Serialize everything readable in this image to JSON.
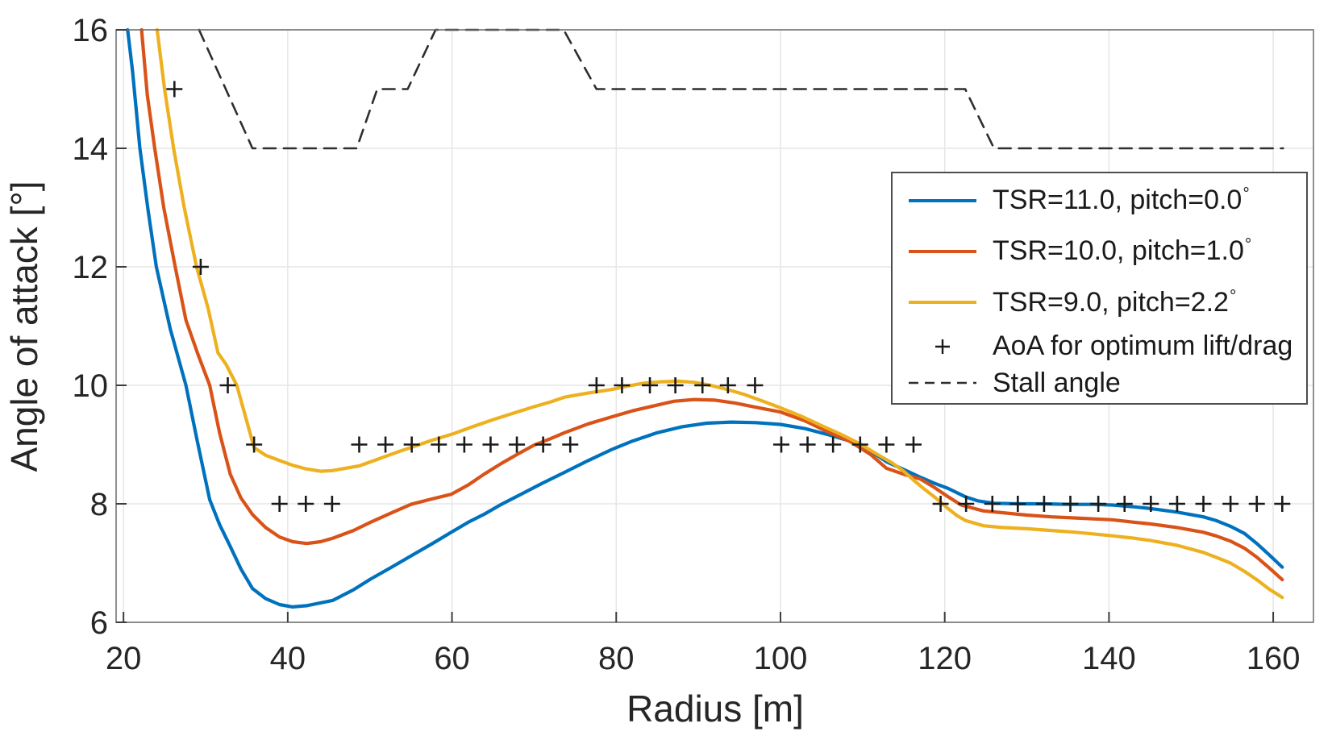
{
  "figure": {
    "xlabel": "Radius [m]",
    "ylabel": "Angle of attack [°]",
    "background": "#ffffff",
    "grid_color": "#e6e6e6",
    "box_color": "#6b6b6b",
    "tick_color": "#3c3c3c",
    "text_color": "#262626"
  },
  "legend": {
    "items": [
      {
        "label": "TSR=11.0, pitch=0.0",
        "degree": "°",
        "swatch": "line",
        "color": "#0072BD"
      },
      {
        "label": "TSR=10.0, pitch=1.0",
        "degree": "°",
        "swatch": "line",
        "color": "#D95319"
      },
      {
        "label": "TSR=9.0, pitch=2.2",
        "degree": "°",
        "swatch": "line",
        "color": "#EDB120"
      },
      {
        "label": "AoA for optimum lift/drag",
        "degree": "",
        "swatch": "plus",
        "color": "#1a1a1a"
      },
      {
        "label": "Stall angle",
        "degree": "",
        "swatch": "dashed",
        "color": "#2e2e2e"
      }
    ]
  },
  "chart_data": {
    "type": "line",
    "title": "",
    "xlabel": "Radius [m]",
    "ylabel": "Angle of attack [°]",
    "xlim": [
      19.1,
      164.9
    ],
    "ylim": [
      6,
      16
    ],
    "xticks": [
      20,
      40,
      60,
      80,
      100,
      120,
      140,
      160
    ],
    "yticks": [
      6,
      8,
      10,
      12,
      14,
      16
    ],
    "grid": true,
    "legend_position": "upper right",
    "series": [
      {
        "name": "TSR=11.0, pitch=0.0°",
        "type": "line",
        "color": "#0072BD",
        "width": 4.2,
        "points": [
          [
            20.5,
            16
          ],
          [
            21.1,
            15.3
          ],
          [
            22,
            14
          ],
          [
            23,
            12.95
          ],
          [
            24,
            12
          ],
          [
            25.7,
            10.95
          ],
          [
            27.6,
            10
          ],
          [
            29,
            9.05
          ],
          [
            30.5,
            8.07
          ],
          [
            31.7,
            7.65
          ],
          [
            33,
            7.28
          ],
          [
            34.3,
            6.9
          ],
          [
            35.7,
            6.57
          ],
          [
            37.3,
            6.4
          ],
          [
            39,
            6.3
          ],
          [
            40.6,
            6.26
          ],
          [
            42.3,
            6.28
          ],
          [
            45.5,
            6.37
          ],
          [
            48,
            6.55
          ],
          [
            50.1,
            6.73
          ],
          [
            52.5,
            6.92
          ],
          [
            55,
            7.12
          ],
          [
            57.5,
            7.32
          ],
          [
            59.9,
            7.52
          ],
          [
            62,
            7.69
          ],
          [
            64,
            7.83
          ],
          [
            66,
            7.99
          ],
          [
            68.1,
            8.14
          ],
          [
            70.9,
            8.34
          ],
          [
            73.7,
            8.53
          ],
          [
            76.6,
            8.73
          ],
          [
            79.5,
            8.92
          ],
          [
            82,
            9.06
          ],
          [
            85,
            9.2
          ],
          [
            88,
            9.3
          ],
          [
            91,
            9.36
          ],
          [
            94,
            9.38
          ],
          [
            97,
            9.37
          ],
          [
            100,
            9.34
          ],
          [
            103,
            9.27
          ],
          [
            106,
            9.16
          ],
          [
            109.7,
            9.01
          ],
          [
            112.9,
            8.71
          ],
          [
            115,
            8.58
          ],
          [
            117,
            8.45
          ],
          [
            118.7,
            8.35
          ],
          [
            120.4,
            8.26
          ],
          [
            122.5,
            8.12
          ],
          [
            124,
            8.05
          ],
          [
            126,
            8.01
          ],
          [
            129,
            8
          ],
          [
            132,
            8
          ],
          [
            135,
            7.99
          ],
          [
            138,
            7.99
          ],
          [
            140.4,
            7.98
          ],
          [
            143,
            7.95
          ],
          [
            145.1,
            7.92
          ],
          [
            148.3,
            7.86
          ],
          [
            151.5,
            7.78
          ],
          [
            153,
            7.72
          ],
          [
            154.8,
            7.62
          ],
          [
            156.5,
            7.5
          ],
          [
            158,
            7.33
          ],
          [
            159.5,
            7.14
          ],
          [
            161.1,
            6.93
          ]
        ]
      },
      {
        "name": "TSR=10.0, pitch=1.0°",
        "type": "line",
        "color": "#D95319",
        "width": 4.2,
        "points": [
          [
            22.2,
            16
          ],
          [
            22.9,
            14.9
          ],
          [
            23.8,
            14
          ],
          [
            24.9,
            13
          ],
          [
            26.3,
            12
          ],
          [
            27.6,
            11.1
          ],
          [
            29,
            10.55
          ],
          [
            30.5,
            10
          ],
          [
            31.7,
            9.2
          ],
          [
            33,
            8.5
          ],
          [
            34.3,
            8.1
          ],
          [
            35.7,
            7.82
          ],
          [
            37.3,
            7.6
          ],
          [
            39,
            7.44
          ],
          [
            40.6,
            7.36
          ],
          [
            42.3,
            7.33
          ],
          [
            44,
            7.36
          ],
          [
            45.5,
            7.42
          ],
          [
            48,
            7.55
          ],
          [
            50.1,
            7.69
          ],
          [
            52.5,
            7.84
          ],
          [
            55,
            7.99
          ],
          [
            57.5,
            8.08
          ],
          [
            59.9,
            8.16
          ],
          [
            62,
            8.32
          ],
          [
            63.9,
            8.5
          ],
          [
            66,
            8.68
          ],
          [
            68,
            8.84
          ],
          [
            70,
            8.99
          ],
          [
            72,
            9.1
          ],
          [
            73.7,
            9.2
          ],
          [
            76.6,
            9.35
          ],
          [
            79.5,
            9.47
          ],
          [
            82,
            9.57
          ],
          [
            84.5,
            9.65
          ],
          [
            87,
            9.73
          ],
          [
            89.5,
            9.76
          ],
          [
            92,
            9.75
          ],
          [
            94.5,
            9.7
          ],
          [
            97,
            9.63
          ],
          [
            100,
            9.55
          ],
          [
            103,
            9.4
          ],
          [
            106,
            9.2
          ],
          [
            108.5,
            9.05
          ],
          [
            111,
            8.83
          ],
          [
            112.9,
            8.6
          ],
          [
            115,
            8.5
          ],
          [
            117,
            8.42
          ],
          [
            118.7,
            8.28
          ],
          [
            120.4,
            8.12
          ],
          [
            122,
            7.98
          ],
          [
            124.7,
            7.88
          ],
          [
            127,
            7.85
          ],
          [
            130,
            7.81
          ],
          [
            133,
            7.78
          ],
          [
            136,
            7.76
          ],
          [
            140.4,
            7.73
          ],
          [
            143,
            7.69
          ],
          [
            145.1,
            7.66
          ],
          [
            148.3,
            7.6
          ],
          [
            151.5,
            7.52
          ],
          [
            153,
            7.46
          ],
          [
            154.8,
            7.37
          ],
          [
            156.5,
            7.25
          ],
          [
            158,
            7.1
          ],
          [
            159.5,
            6.92
          ],
          [
            161.1,
            6.72
          ]
        ]
      },
      {
        "name": "TSR=9.0, pitch=2.2°",
        "type": "line",
        "color": "#EDB120",
        "width": 4.2,
        "points": [
          [
            24.1,
            16
          ],
          [
            25,
            15
          ],
          [
            26.1,
            14
          ],
          [
            27.4,
            13
          ],
          [
            28.9,
            12
          ],
          [
            30.3,
            11.3
          ],
          [
            31.5,
            10.55
          ],
          [
            32.5,
            10.35
          ],
          [
            33.8,
            10
          ],
          [
            35,
            9.4
          ],
          [
            35.9,
            8.95
          ],
          [
            37.3,
            8.82
          ],
          [
            39,
            8.73
          ],
          [
            40.6,
            8.65
          ],
          [
            42.2,
            8.59
          ],
          [
            44,
            8.55
          ],
          [
            45.4,
            8.56
          ],
          [
            47,
            8.6
          ],
          [
            48.7,
            8.64
          ],
          [
            50.3,
            8.72
          ],
          [
            51.9,
            8.8
          ],
          [
            53.5,
            8.88
          ],
          [
            55,
            8.95
          ],
          [
            57.5,
            9.07
          ],
          [
            60.1,
            9.18
          ],
          [
            62.5,
            9.3
          ],
          [
            65,
            9.42
          ],
          [
            67.5,
            9.53
          ],
          [
            70,
            9.64
          ],
          [
            72,
            9.72
          ],
          [
            73.7,
            9.8
          ],
          [
            76.6,
            9.87
          ],
          [
            79.5,
            9.93
          ],
          [
            81.5,
            9.99
          ],
          [
            83.5,
            10.04
          ],
          [
            85.5,
            10.06
          ],
          [
            87.5,
            10.07
          ],
          [
            89.5,
            10.05
          ],
          [
            91.5,
            10
          ],
          [
            93.5,
            9.93
          ],
          [
            95.5,
            9.85
          ],
          [
            97.7,
            9.74
          ],
          [
            100,
            9.62
          ],
          [
            102.5,
            9.48
          ],
          [
            105,
            9.32
          ],
          [
            107.4,
            9.17
          ],
          [
            109.7,
            9.01
          ],
          [
            111.6,
            8.85
          ],
          [
            113.6,
            8.69
          ],
          [
            115,
            8.55
          ],
          [
            116.2,
            8.4
          ],
          [
            117.5,
            8.25
          ],
          [
            118.9,
            8.1
          ],
          [
            120.4,
            7.92
          ],
          [
            121.5,
            7.8
          ],
          [
            122.5,
            7.72
          ],
          [
            124.7,
            7.63
          ],
          [
            127,
            7.6
          ],
          [
            130,
            7.58
          ],
          [
            133,
            7.55
          ],
          [
            136,
            7.52
          ],
          [
            140.4,
            7.46
          ],
          [
            143,
            7.42
          ],
          [
            145.1,
            7.38
          ],
          [
            148.3,
            7.3
          ],
          [
            151.5,
            7.18
          ],
          [
            153,
            7.1
          ],
          [
            154.8,
            7
          ],
          [
            156.5,
            6.86
          ],
          [
            158,
            6.72
          ],
          [
            159.5,
            6.56
          ],
          [
            161.1,
            6.42
          ]
        ]
      },
      {
        "name": "AoA for optimum lift/drag",
        "type": "scatter",
        "marker": "+",
        "color": "#1a1a1a",
        "points": [
          [
            26.2,
            15
          ],
          [
            29.4,
            12
          ],
          [
            32.7,
            10
          ],
          [
            35.9,
            9
          ],
          [
            39,
            8
          ],
          [
            42.2,
            8
          ],
          [
            45.4,
            8
          ],
          [
            48.7,
            9
          ],
          [
            51.9,
            9
          ],
          [
            55.1,
            9
          ],
          [
            58.4,
            9
          ],
          [
            61.5,
            9
          ],
          [
            64.7,
            9
          ],
          [
            67.9,
            9
          ],
          [
            71.1,
            9
          ],
          [
            74.4,
            9
          ],
          [
            77.6,
            10
          ],
          [
            80.7,
            10
          ],
          [
            84.1,
            10
          ],
          [
            87.2,
            10
          ],
          [
            90.5,
            10
          ],
          [
            93.6,
            10
          ],
          [
            96.9,
            10
          ],
          [
            100.1,
            9
          ],
          [
            103.3,
            9
          ],
          [
            106.4,
            9
          ],
          [
            109.7,
            9
          ],
          [
            112.9,
            9
          ],
          [
            116.2,
            9
          ],
          [
            119.5,
            8
          ],
          [
            122.6,
            8
          ],
          [
            125.8,
            8
          ],
          [
            128.9,
            8
          ],
          [
            132.1,
            8
          ],
          [
            135.3,
            8
          ],
          [
            138.7,
            8
          ],
          [
            141.9,
            8
          ],
          [
            145.1,
            8
          ],
          [
            148.3,
            8
          ],
          [
            151.5,
            8
          ],
          [
            154.8,
            8
          ],
          [
            158,
            8
          ],
          [
            161.1,
            8
          ]
        ]
      },
      {
        "name": "Stall angle",
        "type": "dashed-line",
        "color": "#2e2e2e",
        "width": 2.6,
        "points": [
          [
            29.2,
            16
          ],
          [
            35.7,
            14
          ],
          [
            48.4,
            14
          ],
          [
            50.9,
            15
          ],
          [
            54.6,
            15
          ],
          [
            58,
            16
          ],
          [
            73.6,
            16
          ],
          [
            77.6,
            15
          ],
          [
            122.5,
            15
          ],
          [
            126,
            14
          ],
          [
            161.2,
            14
          ]
        ]
      }
    ]
  }
}
